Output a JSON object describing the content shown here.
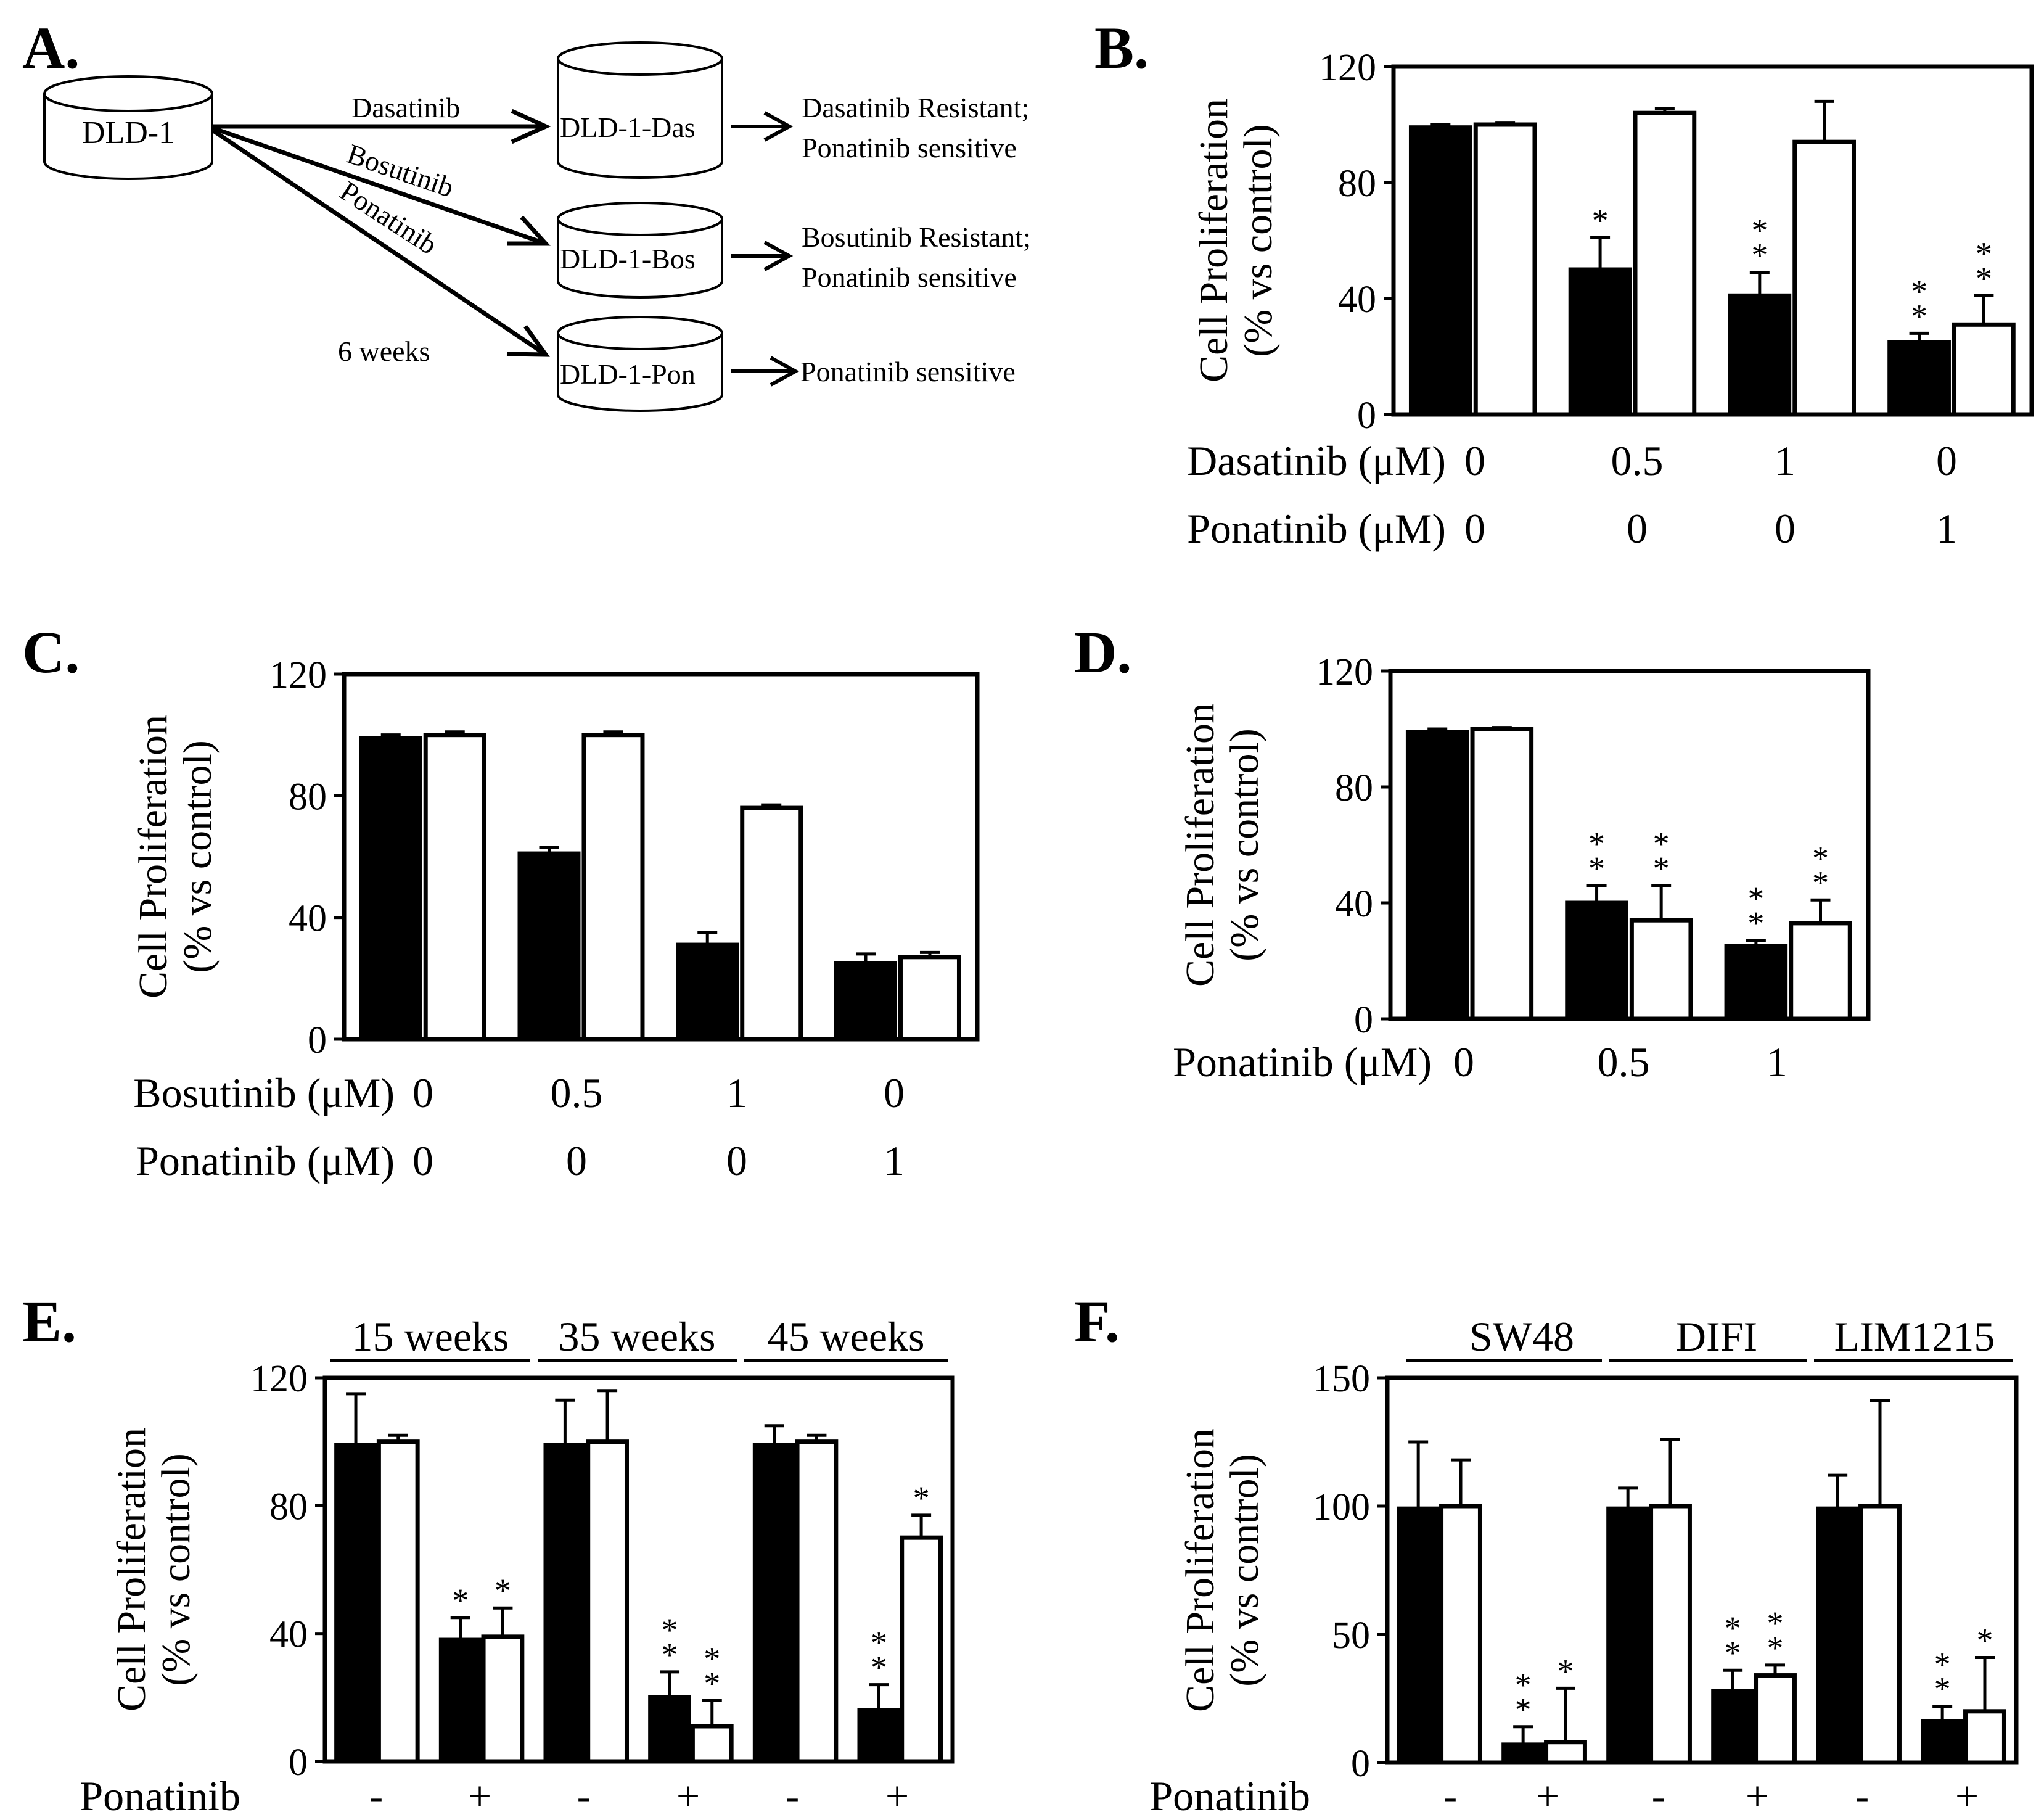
{
  "panel_a": {
    "letter": "A.",
    "source_cell": "DLD-1",
    "treatments": [
      {
        "drug": "Dasatinib",
        "cell": "DLD-1-Das",
        "outcome_line1": "Dasatinib Resistant;",
        "outcome_line2": "Ponatinib sensitive"
      },
      {
        "drug": "Bosutinib",
        "cell": "DLD-1-Bos",
        "outcome_line1": "Bosutinib Resistant;",
        "outcome_line2": "Ponatinib sensitive"
      },
      {
        "drug": "Ponatinib",
        "cell": "DLD-1-Pon",
        "outcome_line1": "Ponatinib sensitive",
        "outcome_line2": ""
      }
    ],
    "duration": "6 weeks"
  },
  "chart_data": [
    {
      "panel": "B.",
      "type": "bar",
      "ylabel": [
        "Cell Proliferation",
        "(% vs control)"
      ],
      "ylim": [
        0,
        120
      ],
      "yticks": [
        0,
        40,
        80,
        120
      ],
      "groups": 4,
      "series": [
        {
          "name": "black",
          "color": "#000000",
          "values": [
            99,
            50,
            41,
            25
          ],
          "errors": [
            1,
            11,
            8,
            3
          ],
          "stars": [
            "",
            "*",
            "**",
            "**"
          ]
        },
        {
          "name": "white",
          "color": "#ffffff",
          "values": [
            100,
            104,
            94,
            31
          ],
          "errors": [
            0.5,
            1.5,
            14,
            10
          ],
          "stars": [
            "",
            "",
            "",
            "**"
          ]
        }
      ],
      "conditions": [
        {
          "label": "Dasatinib (μM)",
          "values": [
            "0",
            "0.5",
            "1",
            "0"
          ]
        },
        {
          "label": "Ponatinib (μM)",
          "values": [
            "0",
            "0",
            "0",
            "1"
          ]
        }
      ]
    },
    {
      "panel": "C.",
      "type": "bar",
      "ylabel": [
        "Cell Proliferation",
        "(% vs control)"
      ],
      "ylim": [
        0,
        120
      ],
      "yticks": [
        0,
        40,
        80,
        120
      ],
      "groups": 4,
      "series": [
        {
          "name": "black",
          "color": "#000000",
          "values": [
            99,
            61,
            31,
            25
          ],
          "errors": [
            1,
            2,
            4,
            3
          ],
          "stars": [
            "",
            "",
            "",
            ""
          ]
        },
        {
          "name": "white",
          "color": "#ffffff",
          "values": [
            100,
            100,
            76,
            27
          ],
          "errors": [
            1,
            1,
            1,
            1.5
          ],
          "stars": [
            "",
            "",
            "",
            ""
          ]
        }
      ],
      "conditions": [
        {
          "label": "Bosutinib (μM)",
          "values": [
            "0",
            "0.5",
            "1",
            "0"
          ]
        },
        {
          "label": "Ponatinib (μM)",
          "values": [
            "0",
            "0",
            "0",
            "1"
          ]
        }
      ]
    },
    {
      "panel": "D.",
      "type": "bar",
      "ylabel": [
        "Cell Proliferation",
        "(% vs control)"
      ],
      "ylim": [
        0,
        120
      ],
      "yticks": [
        0,
        40,
        80,
        120
      ],
      "groups": 3,
      "series": [
        {
          "name": "black",
          "color": "#000000",
          "values": [
            99,
            40,
            25
          ],
          "errors": [
            1,
            6,
            2
          ],
          "stars": [
            "",
            "**",
            "**"
          ]
        },
        {
          "name": "white",
          "color": "#ffffff",
          "values": [
            100,
            34,
            33
          ],
          "errors": [
            0.5,
            12,
            8
          ],
          "stars": [
            "",
            "**",
            "**"
          ]
        }
      ],
      "conditions": [
        {
          "label": "Ponatinib (μM)",
          "values": [
            "0",
            "0.5",
            "1"
          ]
        }
      ]
    },
    {
      "panel": "E.",
      "type": "bar",
      "ylabel": [
        "Cell Proliferation",
        "(% vs control)"
      ],
      "ylim": [
        0,
        120
      ],
      "yticks": [
        0,
        40,
        80,
        120
      ],
      "groups": 6,
      "series": [
        {
          "name": "black",
          "color": "#000000",
          "values": [
            99,
            38,
            99,
            20,
            99,
            16
          ],
          "errors": [
            16,
            7,
            14,
            8,
            6,
            8
          ],
          "stars": [
            "",
            "*",
            "",
            "**",
            "",
            "**"
          ]
        },
        {
          "name": "white",
          "color": "#ffffff",
          "values": [
            100,
            39,
            100,
            11,
            100,
            70
          ],
          "errors": [
            2,
            9,
            16,
            8,
            2,
            7
          ],
          "stars": [
            "",
            "*",
            "",
            "**",
            "",
            "*"
          ]
        }
      ],
      "group_headers": [
        "15 weeks",
        "35 weeks",
        "45 weeks"
      ],
      "conditions": [
        {
          "label": "Ponatinib",
          "values": [
            "-",
            "+",
            "-",
            "+",
            "-",
            "+"
          ]
        }
      ]
    },
    {
      "panel": "F.",
      "type": "bar",
      "ylabel": [
        "Cell Proliferation",
        "(% vs control)"
      ],
      "ylim": [
        0,
        150
      ],
      "yticks": [
        0,
        50,
        100,
        150
      ],
      "groups": 6,
      "series": [
        {
          "name": "black",
          "color": "#000000",
          "values": [
            99,
            7,
            99,
            28,
            99,
            16
          ],
          "errors": [
            26,
            7,
            8,
            8,
            13,
            6
          ],
          "stars": [
            "",
            "**",
            "",
            "**",
            "",
            "**"
          ]
        },
        {
          "name": "white",
          "color": "#ffffff",
          "values": [
            100,
            8,
            100,
            34,
            100,
            20
          ],
          "errors": [
            18,
            21,
            26,
            4,
            41,
            21
          ],
          "stars": [
            "",
            "*",
            "",
            "**",
            "",
            "*"
          ]
        }
      ],
      "group_headers": [
        "SW48",
        "DIFI",
        "LIM1215"
      ],
      "conditions": [
        {
          "label": "Ponatinib",
          "values": [
            "-",
            "+",
            "-",
            "+",
            "-",
            "+"
          ]
        }
      ]
    }
  ]
}
